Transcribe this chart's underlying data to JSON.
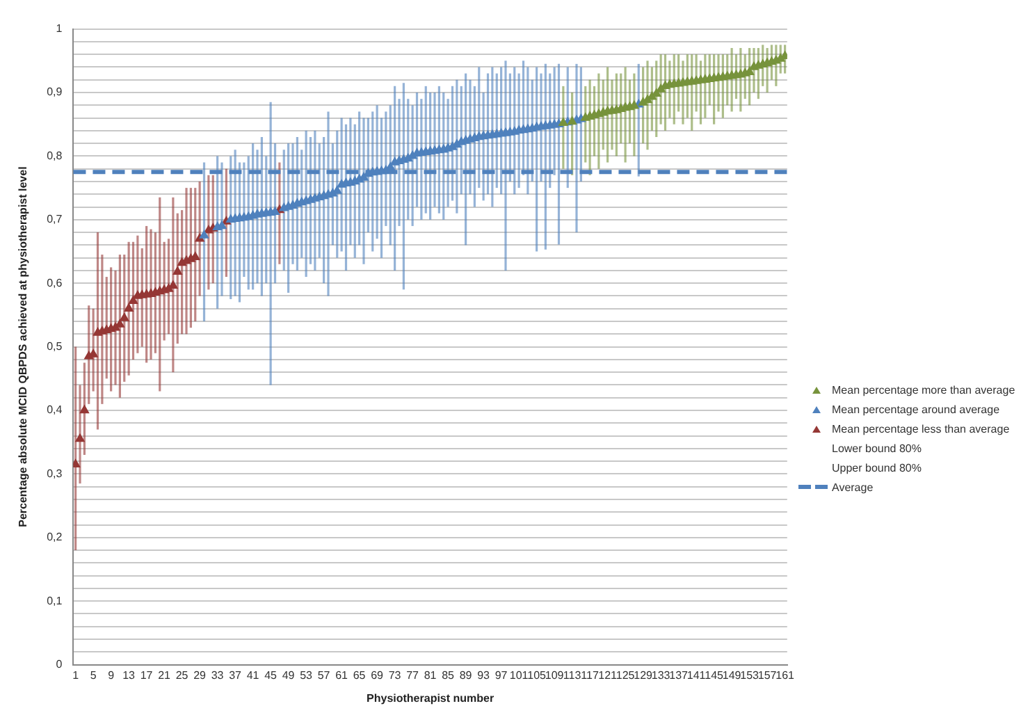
{
  "chart_data": {
    "type": "scatter",
    "xlabel": "Physiotherapist number",
    "ylabel": "Percentage absolute MCID QBPDS achieved at physiotherapist level",
    "xlim": [
      0.5,
      161.5
    ],
    "xticks": [
      1,
      5,
      9,
      13,
      17,
      21,
      25,
      29,
      33,
      37,
      41,
      45,
      49,
      53,
      57,
      61,
      65,
      69,
      73,
      77,
      81,
      85,
      89,
      93,
      97,
      101,
      105,
      109,
      113,
      117,
      121,
      125,
      129,
      133,
      137,
      141,
      145,
      149,
      153,
      157,
      161
    ],
    "ylim": [
      0,
      1
    ],
    "yticks": [
      0,
      {
        "value": 0.02,
        "label": null
      },
      {
        "value": 0.04,
        "label": null
      },
      {
        "value": 0.06,
        "label": null
      },
      {
        "value": 0.08,
        "label": null
      },
      {
        "value": 0.1,
        "label": "0,1"
      },
      {
        "value": 0.12,
        "label": null
      },
      {
        "value": 0.14,
        "label": null
      },
      {
        "value": 0.16,
        "label": null
      },
      {
        "value": 0.18,
        "label": null
      },
      {
        "value": 0.2,
        "label": "0,2"
      },
      {
        "value": 0.22,
        "label": null
      },
      {
        "value": 0.24,
        "label": null
      },
      {
        "value": 0.26,
        "label": null
      },
      {
        "value": 0.28,
        "label": null
      },
      {
        "value": 0.3,
        "label": "0,3"
      },
      {
        "value": 0.32,
        "label": null
      },
      {
        "value": 0.34,
        "label": null
      },
      {
        "value": 0.36,
        "label": null
      },
      {
        "value": 0.38,
        "label": null
      },
      {
        "value": 0.4,
        "label": "0,4"
      },
      {
        "value": 0.42,
        "label": null
      },
      {
        "value": 0.44,
        "label": null
      },
      {
        "value": 0.46,
        "label": null
      },
      {
        "value": 0.48,
        "label": null
      },
      {
        "value": 0.5,
        "label": "0,5"
      },
      {
        "value": 0.52,
        "label": null
      },
      {
        "value": 0.54,
        "label": null
      },
      {
        "value": 0.56,
        "label": null
      },
      {
        "value": 0.58,
        "label": null
      },
      {
        "value": 0.6,
        "label": "0,6"
      },
      {
        "value": 0.62,
        "label": null
      },
      {
        "value": 0.64,
        "label": null
      },
      {
        "value": 0.66,
        "label": null
      },
      {
        "value": 0.68,
        "label": null
      },
      {
        "value": 0.7,
        "label": "0,7"
      },
      {
        "value": 0.72,
        "label": null
      },
      {
        "value": 0.74,
        "label": null
      },
      {
        "value": 0.76,
        "label": null
      },
      {
        "value": 0.78,
        "label": null
      },
      {
        "value": 0.8,
        "label": "0,8"
      },
      {
        "value": 0.82,
        "label": null
      },
      {
        "value": 0.84,
        "label": null
      },
      {
        "value": 0.86,
        "label": null
      },
      {
        "value": 0.88,
        "label": null
      },
      {
        "value": 0.9,
        "label": "0,9"
      },
      {
        "value": 0.92,
        "label": null
      },
      {
        "value": 0.94,
        "label": null
      },
      {
        "value": 0.96,
        "label": null
      },
      {
        "value": 0.98,
        "label": null
      },
      1
    ],
    "grid": "y",
    "legend": "right",
    "marker": "triangle",
    "series": [
      {
        "name": "Mean percentage more than average",
        "color": "#77933c",
        "x": [
          111,
          113,
          116,
          117,
          118,
          119,
          120,
          121,
          122,
          123,
          124,
          125,
          126,
          127,
          129,
          130,
          131,
          132,
          133,
          134,
          135,
          136,
          137,
          138,
          139,
          140,
          141,
          142,
          143,
          144,
          145,
          146,
          147,
          148,
          149,
          150,
          151,
          152,
          153,
          154,
          155,
          156,
          157,
          158,
          159,
          160,
          161
        ],
        "values": [
          0.852,
          0.854,
          0.86,
          0.862,
          0.864,
          0.866,
          0.868,
          0.87,
          0.871,
          0.872,
          0.874,
          0.876,
          0.877,
          0.879,
          0.884,
          0.888,
          0.893,
          0.898,
          0.905,
          0.91,
          0.912,
          0.913,
          0.914,
          0.915,
          0.916,
          0.917,
          0.918,
          0.919,
          0.92,
          0.921,
          0.922,
          0.923,
          0.924,
          0.925,
          0.926,
          0.927,
          0.928,
          0.93,
          0.932,
          0.94,
          0.942,
          0.944,
          0.946,
          0.948,
          0.95,
          0.953,
          0.957
        ],
        "errors": [
          [
            0.78,
            0.91
          ],
          [
            0.77,
            0.9
          ],
          [
            0.79,
            0.91
          ],
          [
            0.77,
            0.92
          ],
          [
            0.8,
            0.91
          ],
          [
            0.78,
            0.93
          ],
          [
            0.81,
            0.92
          ],
          [
            0.79,
            0.94
          ],
          [
            0.81,
            0.92
          ],
          [
            0.8,
            0.93
          ],
          [
            0.82,
            0.93
          ],
          [
            0.79,
            0.94
          ],
          [
            0.82,
            0.92
          ],
          [
            0.8,
            0.93
          ],
          [
            0.82,
            0.94
          ],
          [
            0.81,
            0.95
          ],
          [
            0.84,
            0.94
          ],
          [
            0.83,
            0.95
          ],
          [
            0.85,
            0.96
          ],
          [
            0.84,
            0.96
          ],
          [
            0.86,
            0.95
          ],
          [
            0.85,
            0.96
          ],
          [
            0.87,
            0.96
          ],
          [
            0.85,
            0.95
          ],
          [
            0.86,
            0.96
          ],
          [
            0.84,
            0.96
          ],
          [
            0.87,
            0.96
          ],
          [
            0.85,
            0.95
          ],
          [
            0.86,
            0.96
          ],
          [
            0.88,
            0.96
          ],
          [
            0.85,
            0.96
          ],
          [
            0.87,
            0.96
          ],
          [
            0.86,
            0.96
          ],
          [
            0.88,
            0.96
          ],
          [
            0.87,
            0.97
          ],
          [
            0.89,
            0.96
          ],
          [
            0.87,
            0.97
          ],
          [
            0.89,
            0.96
          ],
          [
            0.88,
            0.97
          ],
          [
            0.9,
            0.97
          ],
          [
            0.89,
            0.97
          ],
          [
            0.91,
            0.975
          ],
          [
            0.9,
            0.97
          ],
          [
            0.92,
            0.975
          ],
          [
            0.91,
            0.975
          ],
          [
            0.93,
            0.975
          ],
          [
            0.93,
            0.975
          ]
        ]
      },
      {
        "name": "Mean percentage around average",
        "color": "#4f81bd",
        "x": [
          30,
          33,
          34,
          36,
          37,
          38,
          39,
          40,
          41,
          42,
          43,
          44,
          45,
          46,
          48,
          49,
          50,
          51,
          52,
          53,
          54,
          55,
          56,
          57,
          58,
          59,
          60,
          61,
          62,
          63,
          64,
          65,
          66,
          67,
          68,
          69,
          70,
          71,
          72,
          73,
          74,
          75,
          76,
          77,
          78,
          79,
          80,
          81,
          82,
          83,
          84,
          85,
          86,
          87,
          88,
          89,
          90,
          91,
          92,
          93,
          94,
          95,
          96,
          97,
          98,
          99,
          100,
          101,
          102,
          103,
          104,
          105,
          106,
          107,
          108,
          109,
          110,
          112,
          114,
          115,
          128
        ],
        "values": [
          0.675,
          0.688,
          0.69,
          0.7,
          0.701,
          0.702,
          0.703,
          0.704,
          0.706,
          0.708,
          0.709,
          0.71,
          0.711,
          0.712,
          0.718,
          0.72,
          0.722,
          0.725,
          0.727,
          0.729,
          0.731,
          0.733,
          0.735,
          0.737,
          0.739,
          0.741,
          0.745,
          0.755,
          0.757,
          0.758,
          0.76,
          0.763,
          0.766,
          0.772,
          0.774,
          0.775,
          0.776,
          0.777,
          0.782,
          0.79,
          0.792,
          0.794,
          0.796,
          0.8,
          0.804,
          0.805,
          0.806,
          0.807,
          0.808,
          0.809,
          0.81,
          0.812,
          0.814,
          0.818,
          0.822,
          0.824,
          0.826,
          0.828,
          0.83,
          0.831,
          0.832,
          0.833,
          0.834,
          0.835,
          0.836,
          0.837,
          0.838,
          0.84,
          0.841,
          0.842,
          0.843,
          0.845,
          0.846,
          0.847,
          0.848,
          0.849,
          0.85,
          0.853,
          0.856,
          0.858,
          0.881
        ],
        "errors": [
          [
            0.54,
            0.79
          ],
          [
            0.56,
            0.8
          ],
          [
            0.58,
            0.79
          ],
          [
            0.575,
            0.8
          ],
          [
            0.58,
            0.81
          ],
          [
            0.57,
            0.79
          ],
          [
            0.61,
            0.79
          ],
          [
            0.59,
            0.8
          ],
          [
            0.59,
            0.82
          ],
          [
            0.6,
            0.81
          ],
          [
            0.58,
            0.83
          ],
          [
            0.6,
            0.8
          ],
          [
            0.44,
            0.885
          ],
          [
            0.6,
            0.82
          ],
          [
            0.62,
            0.81
          ],
          [
            0.585,
            0.82
          ],
          [
            0.63,
            0.82
          ],
          [
            0.62,
            0.83
          ],
          [
            0.64,
            0.81
          ],
          [
            0.61,
            0.84
          ],
          [
            0.63,
            0.83
          ],
          [
            0.62,
            0.84
          ],
          [
            0.64,
            0.82
          ],
          [
            0.6,
            0.83
          ],
          [
            0.58,
            0.87
          ],
          [
            0.66,
            0.82
          ],
          [
            0.64,
            0.84
          ],
          [
            0.65,
            0.86
          ],
          [
            0.62,
            0.85
          ],
          [
            0.66,
            0.86
          ],
          [
            0.64,
            0.85
          ],
          [
            0.66,
            0.87
          ],
          [
            0.63,
            0.86
          ],
          [
            0.68,
            0.86
          ],
          [
            0.65,
            0.87
          ],
          [
            0.67,
            0.88
          ],
          [
            0.64,
            0.86
          ],
          [
            0.69,
            0.87
          ],
          [
            0.66,
            0.88
          ],
          [
            0.62,
            0.91
          ],
          [
            0.69,
            0.89
          ],
          [
            0.59,
            0.915
          ],
          [
            0.7,
            0.89
          ],
          [
            0.69,
            0.88
          ],
          [
            0.72,
            0.9
          ],
          [
            0.7,
            0.89
          ],
          [
            0.71,
            0.91
          ],
          [
            0.7,
            0.9
          ],
          [
            0.72,
            0.9
          ],
          [
            0.71,
            0.91
          ],
          [
            0.7,
            0.9
          ],
          [
            0.72,
            0.89
          ],
          [
            0.73,
            0.91
          ],
          [
            0.71,
            0.92
          ],
          [
            0.74,
            0.91
          ],
          [
            0.66,
            0.93
          ],
          [
            0.74,
            0.92
          ],
          [
            0.72,
            0.91
          ],
          [
            0.75,
            0.94
          ],
          [
            0.73,
            0.9
          ],
          [
            0.74,
            0.93
          ],
          [
            0.72,
            0.94
          ],
          [
            0.75,
            0.93
          ],
          [
            0.74,
            0.94
          ],
          [
            0.62,
            0.95
          ],
          [
            0.76,
            0.93
          ],
          [
            0.74,
            0.94
          ],
          [
            0.75,
            0.93
          ],
          [
            0.77,
            0.95
          ],
          [
            0.74,
            0.94
          ],
          [
            0.76,
            0.92
          ],
          [
            0.65,
            0.94
          ],
          [
            0.76,
            0.93
          ],
          [
            0.653,
            0.945
          ],
          [
            0.75,
            0.93
          ],
          [
            0.77,
            0.94
          ],
          [
            0.661,
            0.945
          ],
          [
            0.75,
            0.94
          ],
          [
            0.68,
            0.945
          ],
          [
            0.76,
            0.94
          ],
          [
            0.768,
            0.945
          ]
        ]
      },
      {
        "name": "Mean percentage less than average",
        "color": "#953735",
        "x": [
          1,
          2,
          3,
          4,
          5,
          6,
          7,
          8,
          9,
          10,
          11,
          12,
          13,
          14,
          15,
          16,
          17,
          18,
          19,
          20,
          21,
          22,
          23,
          24,
          25,
          26,
          27,
          28,
          29,
          31,
          32,
          35,
          47
        ],
        "values": [
          0.315,
          0.355,
          0.4,
          0.485,
          0.488,
          0.522,
          0.524,
          0.526,
          0.528,
          0.53,
          0.535,
          0.545,
          0.56,
          0.572,
          0.58,
          0.581,
          0.582,
          0.583,
          0.585,
          0.587,
          0.589,
          0.591,
          0.596,
          0.618,
          0.632,
          0.635,
          0.638,
          0.641,
          0.67,
          0.683,
          0.686,
          0.697,
          0.715
        ],
        "errors": [
          [
            0.18,
            0.5
          ],
          [
            0.285,
            0.44
          ],
          [
            0.33,
            0.475
          ],
          [
            0.41,
            0.565
          ],
          [
            0.43,
            0.56
          ],
          [
            0.37,
            0.68
          ],
          [
            0.41,
            0.645
          ],
          [
            0.45,
            0.61
          ],
          [
            0.43,
            0.625
          ],
          [
            0.44,
            0.62
          ],
          [
            0.42,
            0.645
          ],
          [
            0.445,
            0.645
          ],
          [
            0.455,
            0.665
          ],
          [
            0.48,
            0.665
          ],
          [
            0.49,
            0.675
          ],
          [
            0.5,
            0.655
          ],
          [
            0.475,
            0.69
          ],
          [
            0.48,
            0.685
          ],
          [
            0.49,
            0.68
          ],
          [
            0.43,
            0.735
          ],
          [
            0.51,
            0.665
          ],
          [
            0.52,
            0.67
          ],
          [
            0.46,
            0.735
          ],
          [
            0.505,
            0.71
          ],
          [
            0.52,
            0.715
          ],
          [
            0.52,
            0.75
          ],
          [
            0.53,
            0.75
          ],
          [
            0.54,
            0.75
          ],
          [
            0.58,
            0.76
          ],
          [
            0.59,
            0.77
          ],
          [
            0.6,
            0.77
          ],
          [
            0.61,
            0.78
          ],
          [
            0.63,
            0.79
          ]
        ]
      }
    ],
    "ref_lines": [
      {
        "axis": "y",
        "value": 0.775,
        "label": "Average",
        "color": "#4f81bd",
        "line_style": "dashed"
      }
    ],
    "annotations": [
      "Lower bound 80%",
      "Upper bound 80%"
    ]
  }
}
